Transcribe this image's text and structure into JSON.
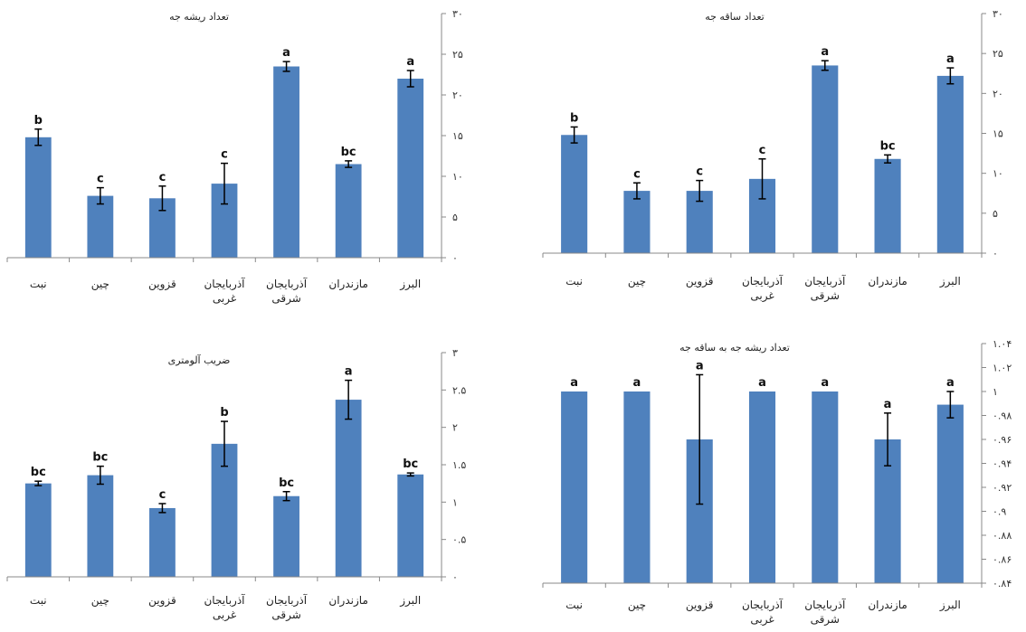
{
  "chart_data": [
    {
      "type": "bar",
      "title": "تعداد ریشه جه",
      "categories": [
        [
          "نبت"
        ],
        [
          "چین"
        ],
        [
          "قزوین"
        ],
        [
          "آذربایجان",
          "غربی"
        ],
        [
          "آذربایجان",
          "شرقی"
        ],
        [
          "مازندران"
        ],
        [
          "البرز"
        ]
      ],
      "values": [
        14.8,
        7.6,
        7.3,
        9.1,
        23.5,
        11.5,
        22.0
      ],
      "errors": [
        1.0,
        1.0,
        1.5,
        2.5,
        0.6,
        0.4,
        1.0
      ],
      "significance": [
        "b",
        "c",
        "c",
        "c",
        "a",
        "bc",
        "a"
      ],
      "ylim": [
        0,
        30
      ],
      "ytick_values": [
        0,
        5,
        10,
        15,
        20,
        25,
        30
      ],
      "ytick_labels": [
        "۰",
        "۵",
        "۱۰",
        "۱۵",
        "۲۰",
        "۲۵",
        "۳۰"
      ],
      "color": "#4f81bd"
    },
    {
      "type": "bar",
      "title": "تعداد ساقه جه",
      "categories": [
        [
          "نبت"
        ],
        [
          "چین"
        ],
        [
          "قزوین"
        ],
        [
          "آذربایجان",
          "غربی"
        ],
        [
          "آذربایجان",
          "شرقی"
        ],
        [
          "مازندران"
        ],
        [
          "البرز"
        ]
      ],
      "values": [
        14.8,
        7.8,
        7.8,
        9.3,
        23.5,
        11.8,
        22.2
      ],
      "errors": [
        1.0,
        1.0,
        1.3,
        2.5,
        0.6,
        0.5,
        1.0
      ],
      "significance": [
        "b",
        "c",
        "c",
        "c",
        "a",
        "bc",
        "a"
      ],
      "ylim": [
        0,
        30
      ],
      "ytick_values": [
        0,
        5,
        10,
        15,
        20,
        25,
        30
      ],
      "ytick_labels": [
        "۰",
        "۵",
        "۱۰",
        "۱۵",
        "۲۰",
        "۲۵",
        "۳۰"
      ],
      "color": "#4f81bd"
    },
    {
      "type": "bar",
      "title": "ضریب آلومتری",
      "categories": [
        [
          "نبت"
        ],
        [
          "چین"
        ],
        [
          "قزوین"
        ],
        [
          "آذربایجان",
          "غربی"
        ],
        [
          "آذربایجان",
          "شرقی"
        ],
        [
          "مازندران"
        ],
        [
          "البرز"
        ]
      ],
      "values": [
        1.25,
        1.36,
        0.92,
        1.78,
        1.08,
        2.37,
        1.37
      ],
      "errors": [
        0.03,
        0.12,
        0.06,
        0.3,
        0.06,
        0.26,
        0.02
      ],
      "significance": [
        "bc",
        "bc",
        "c",
        "b",
        "bc",
        "a",
        "bc"
      ],
      "ylim": [
        0,
        3
      ],
      "ytick_values": [
        0,
        0.5,
        1,
        1.5,
        2,
        2.5,
        3
      ],
      "ytick_labels": [
        "۰",
        "۰.۵",
        "۱",
        "۱.۵",
        "۲",
        "۲.۵",
        "۳"
      ],
      "color": "#4f81bd"
    },
    {
      "type": "bar",
      "title": "تعداد ریشه جه به ساقه جه",
      "categories": [
        [
          "نبت"
        ],
        [
          "چین"
        ],
        [
          "قزوین"
        ],
        [
          "آذربایجان",
          "غربی"
        ],
        [
          "آذربایجان",
          "شرقی"
        ],
        [
          "مازندران"
        ],
        [
          "البرز"
        ]
      ],
      "values": [
        1.0,
        1.0,
        0.96,
        1.0,
        1.0,
        0.96,
        0.989
      ],
      "errors": [
        0,
        0,
        0.054,
        0,
        0,
        0.022,
        0.011
      ],
      "significance": [
        "a",
        "a",
        "a",
        "a",
        "a",
        "a",
        "a"
      ],
      "ylim": [
        0.84,
        1.04
      ],
      "ytick_values": [
        0.84,
        0.86,
        0.88,
        0.9,
        0.92,
        0.94,
        0.96,
        0.98,
        1.0,
        1.02,
        1.04
      ],
      "ytick_labels": [
        "۰.۸۴",
        "۰.۸۶",
        "۰.۸۸",
        "۰.۹",
        "۰.۹۲",
        "۰.۹۴",
        "۰.۹۶",
        "۰.۹۸",
        "۱",
        "۱.۰۲",
        "۱.۰۴"
      ],
      "color": "#4f81bd"
    }
  ]
}
